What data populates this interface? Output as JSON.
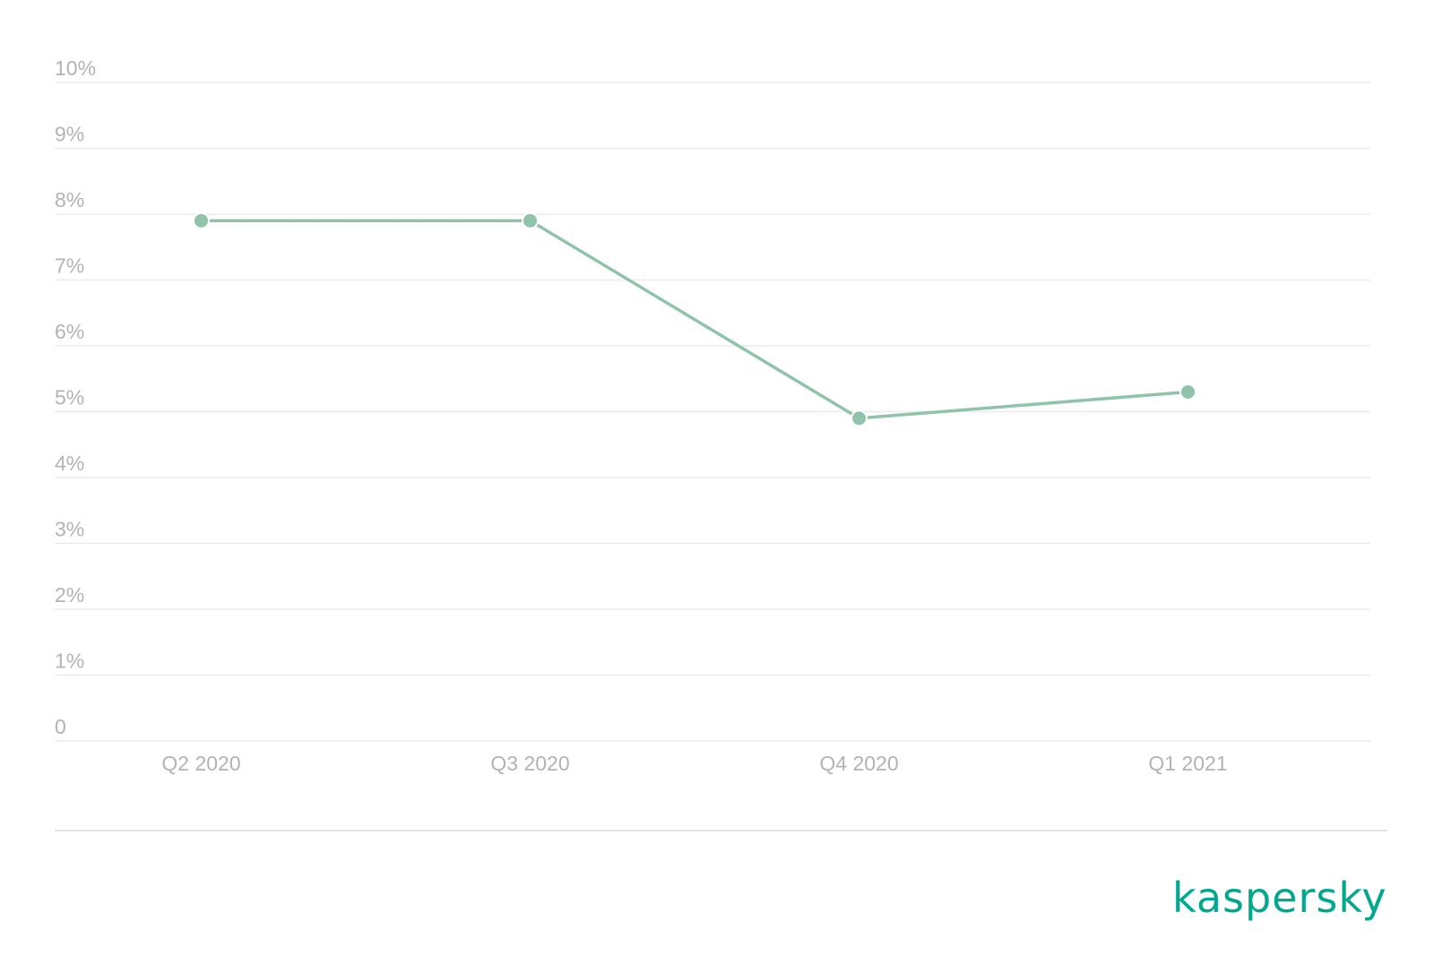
{
  "chart_data": {
    "type": "line",
    "categories": [
      "Q2 2020",
      "Q3 2020",
      "Q4 2020",
      "Q1 2021"
    ],
    "series": [
      {
        "values": [
          7.9,
          7.9,
          4.9,
          5.3
        ],
        "color": "#8fc4ab"
      }
    ],
    "yticks": [
      "0",
      "1%",
      "2%",
      "3%",
      "4%",
      "5%",
      "6%",
      "7%",
      "8%",
      "9%",
      "10%"
    ],
    "ylim": [
      0,
      10
    ],
    "grid": true,
    "title": "",
    "xlabel": "",
    "ylabel": ""
  },
  "brand": {
    "logo_text": "kaspersky",
    "color": "#00a88e"
  }
}
